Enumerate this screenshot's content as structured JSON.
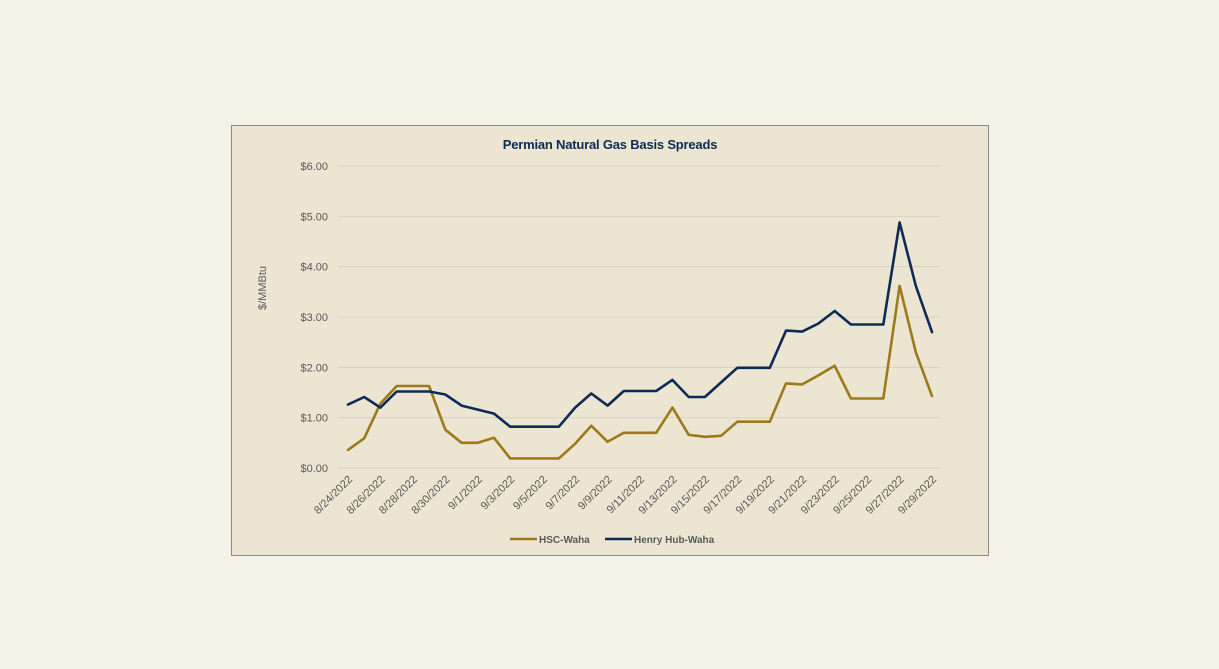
{
  "chart_data": {
    "type": "line",
    "title": "Permian Natural Gas Basis Spreads",
    "ylabel": "$/MMBtu",
    "xlabel": "",
    "ylim": [
      0,
      6
    ],
    "yticks": [
      "$0.00",
      "$1.00",
      "$2.00",
      "$3.00",
      "$4.00",
      "$5.00",
      "$6.00"
    ],
    "grid": "horizontal",
    "legend": "bottom",
    "x": [
      "8/24/2022",
      "8/25/2022",
      "8/26/2022",
      "8/27/2022",
      "8/28/2022",
      "8/29/2022",
      "8/30/2022",
      "8/31/2022",
      "9/1/2022",
      "9/2/2022",
      "9/3/2022",
      "9/4/2022",
      "9/5/2022",
      "9/6/2022",
      "9/7/2022",
      "9/8/2022",
      "9/9/2022",
      "9/10/2022",
      "9/11/2022",
      "9/12/2022",
      "9/13/2022",
      "9/14/2022",
      "9/15/2022",
      "9/16/2022",
      "9/17/2022",
      "9/18/2022",
      "9/19/2022",
      "9/20/2022",
      "9/21/2022",
      "9/22/2022",
      "9/23/2022",
      "9/24/2022",
      "9/25/2022",
      "9/26/2022",
      "9/27/2022",
      "9/28/2022",
      "9/29/2022"
    ],
    "xtick_labels": [
      "8/24/2022",
      "8/26/2022",
      "8/28/2022",
      "8/30/2022",
      "9/1/2022",
      "9/3/2022",
      "9/5/2022",
      "9/7/2022",
      "9/9/2022",
      "9/11/2022",
      "9/13/2022",
      "9/15/2022",
      "9/17/2022",
      "9/19/2022",
      "9/21/2022",
      "9/23/2022",
      "9/25/2022",
      "9/27/2022",
      "9/29/2022"
    ],
    "series": [
      {
        "name": "HSC-Waha",
        "color": "#9c7a1b",
        "values": [
          0.36,
          0.59,
          1.28,
          1.63,
          1.63,
          1.63,
          0.76,
          0.5,
          0.5,
          0.6,
          0.19,
          0.19,
          0.19,
          0.19,
          0.48,
          0.84,
          0.52,
          0.7,
          0.7,
          0.7,
          1.2,
          0.66,
          0.62,
          0.64,
          0.92,
          0.92,
          0.92,
          1.68,
          1.66,
          1.84,
          2.03,
          1.38,
          1.38,
          1.38,
          3.62,
          2.3,
          1.43
        ]
      },
      {
        "name": "Henry Hub-Waha",
        "color": "#0d2b57",
        "values": [
          1.26,
          1.41,
          1.2,
          1.52,
          1.52,
          1.52,
          1.46,
          1.24,
          1.16,
          1.08,
          0.82,
          0.82,
          0.82,
          0.82,
          1.2,
          1.48,
          1.24,
          1.53,
          1.53,
          1.53,
          1.75,
          1.41,
          1.41,
          1.7,
          1.99,
          1.99,
          1.99,
          2.73,
          2.71,
          2.87,
          3.12,
          2.85,
          2.85,
          2.85,
          4.88,
          3.62,
          2.7
        ]
      }
    ]
  }
}
